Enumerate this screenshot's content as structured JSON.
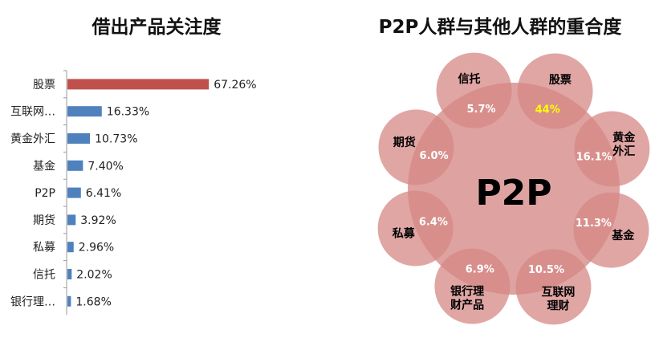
{
  "chart_data": [
    {
      "type": "bar",
      "title": "借出产品关注度",
      "orientation": "horizontal",
      "categories": [
        "股票",
        "互联网…",
        "黄金外汇",
        "基金",
        "P2P",
        "期货",
        "私募",
        "信托",
        "银行理…"
      ],
      "values": [
        67.26,
        16.33,
        10.73,
        7.4,
        6.41,
        3.92,
        2.96,
        2.02,
        1.68
      ],
      "value_labels": [
        "67.26%",
        "16.33%",
        "10.73%",
        "7.40%",
        "6.41%",
        "3.92%",
        "2.96%",
        "2.02%",
        "1.68%"
      ],
      "unit": "%",
      "xlim": [
        0,
        100
      ],
      "colors": {
        "highlight": "#c0504d",
        "default": "#4f81bd"
      }
    },
    {
      "type": "venn",
      "title": "P2P人群与其他人群的重合度",
      "center_label": "P2P",
      "center_color": "#d99594",
      "satellites": [
        {
          "name": "信托",
          "name_lines": [
            "信托"
          ],
          "overlap": "5.7%"
        },
        {
          "name": "股票",
          "name_lines": [
            "股票"
          ],
          "overlap": "44%",
          "highlight": true
        },
        {
          "name": "黄金外汇",
          "name_lines": [
            "黄金",
            "外汇"
          ],
          "overlap": "16.1%"
        },
        {
          "name": "基金",
          "name_lines": [
            "基金"
          ],
          "overlap": "11.3%"
        },
        {
          "name": "互联网理财",
          "name_lines": [
            "互联网",
            "理财"
          ],
          "overlap": "10.5%"
        },
        {
          "name": "银行理财产品",
          "name_lines": [
            "银行理",
            "财产品"
          ],
          "overlap": "6.9%"
        },
        {
          "name": "私募",
          "name_lines": [
            "私募"
          ],
          "overlap": "6.4%"
        },
        {
          "name": "期货",
          "name_lines": [
            "期货"
          ],
          "overlap": "6.0%"
        }
      ],
      "colors": {
        "circle_fill": "#d68886",
        "overlap_text": "#ffffff",
        "highlight_text": "#ffff00",
        "name_text": "#000000"
      }
    }
  ]
}
